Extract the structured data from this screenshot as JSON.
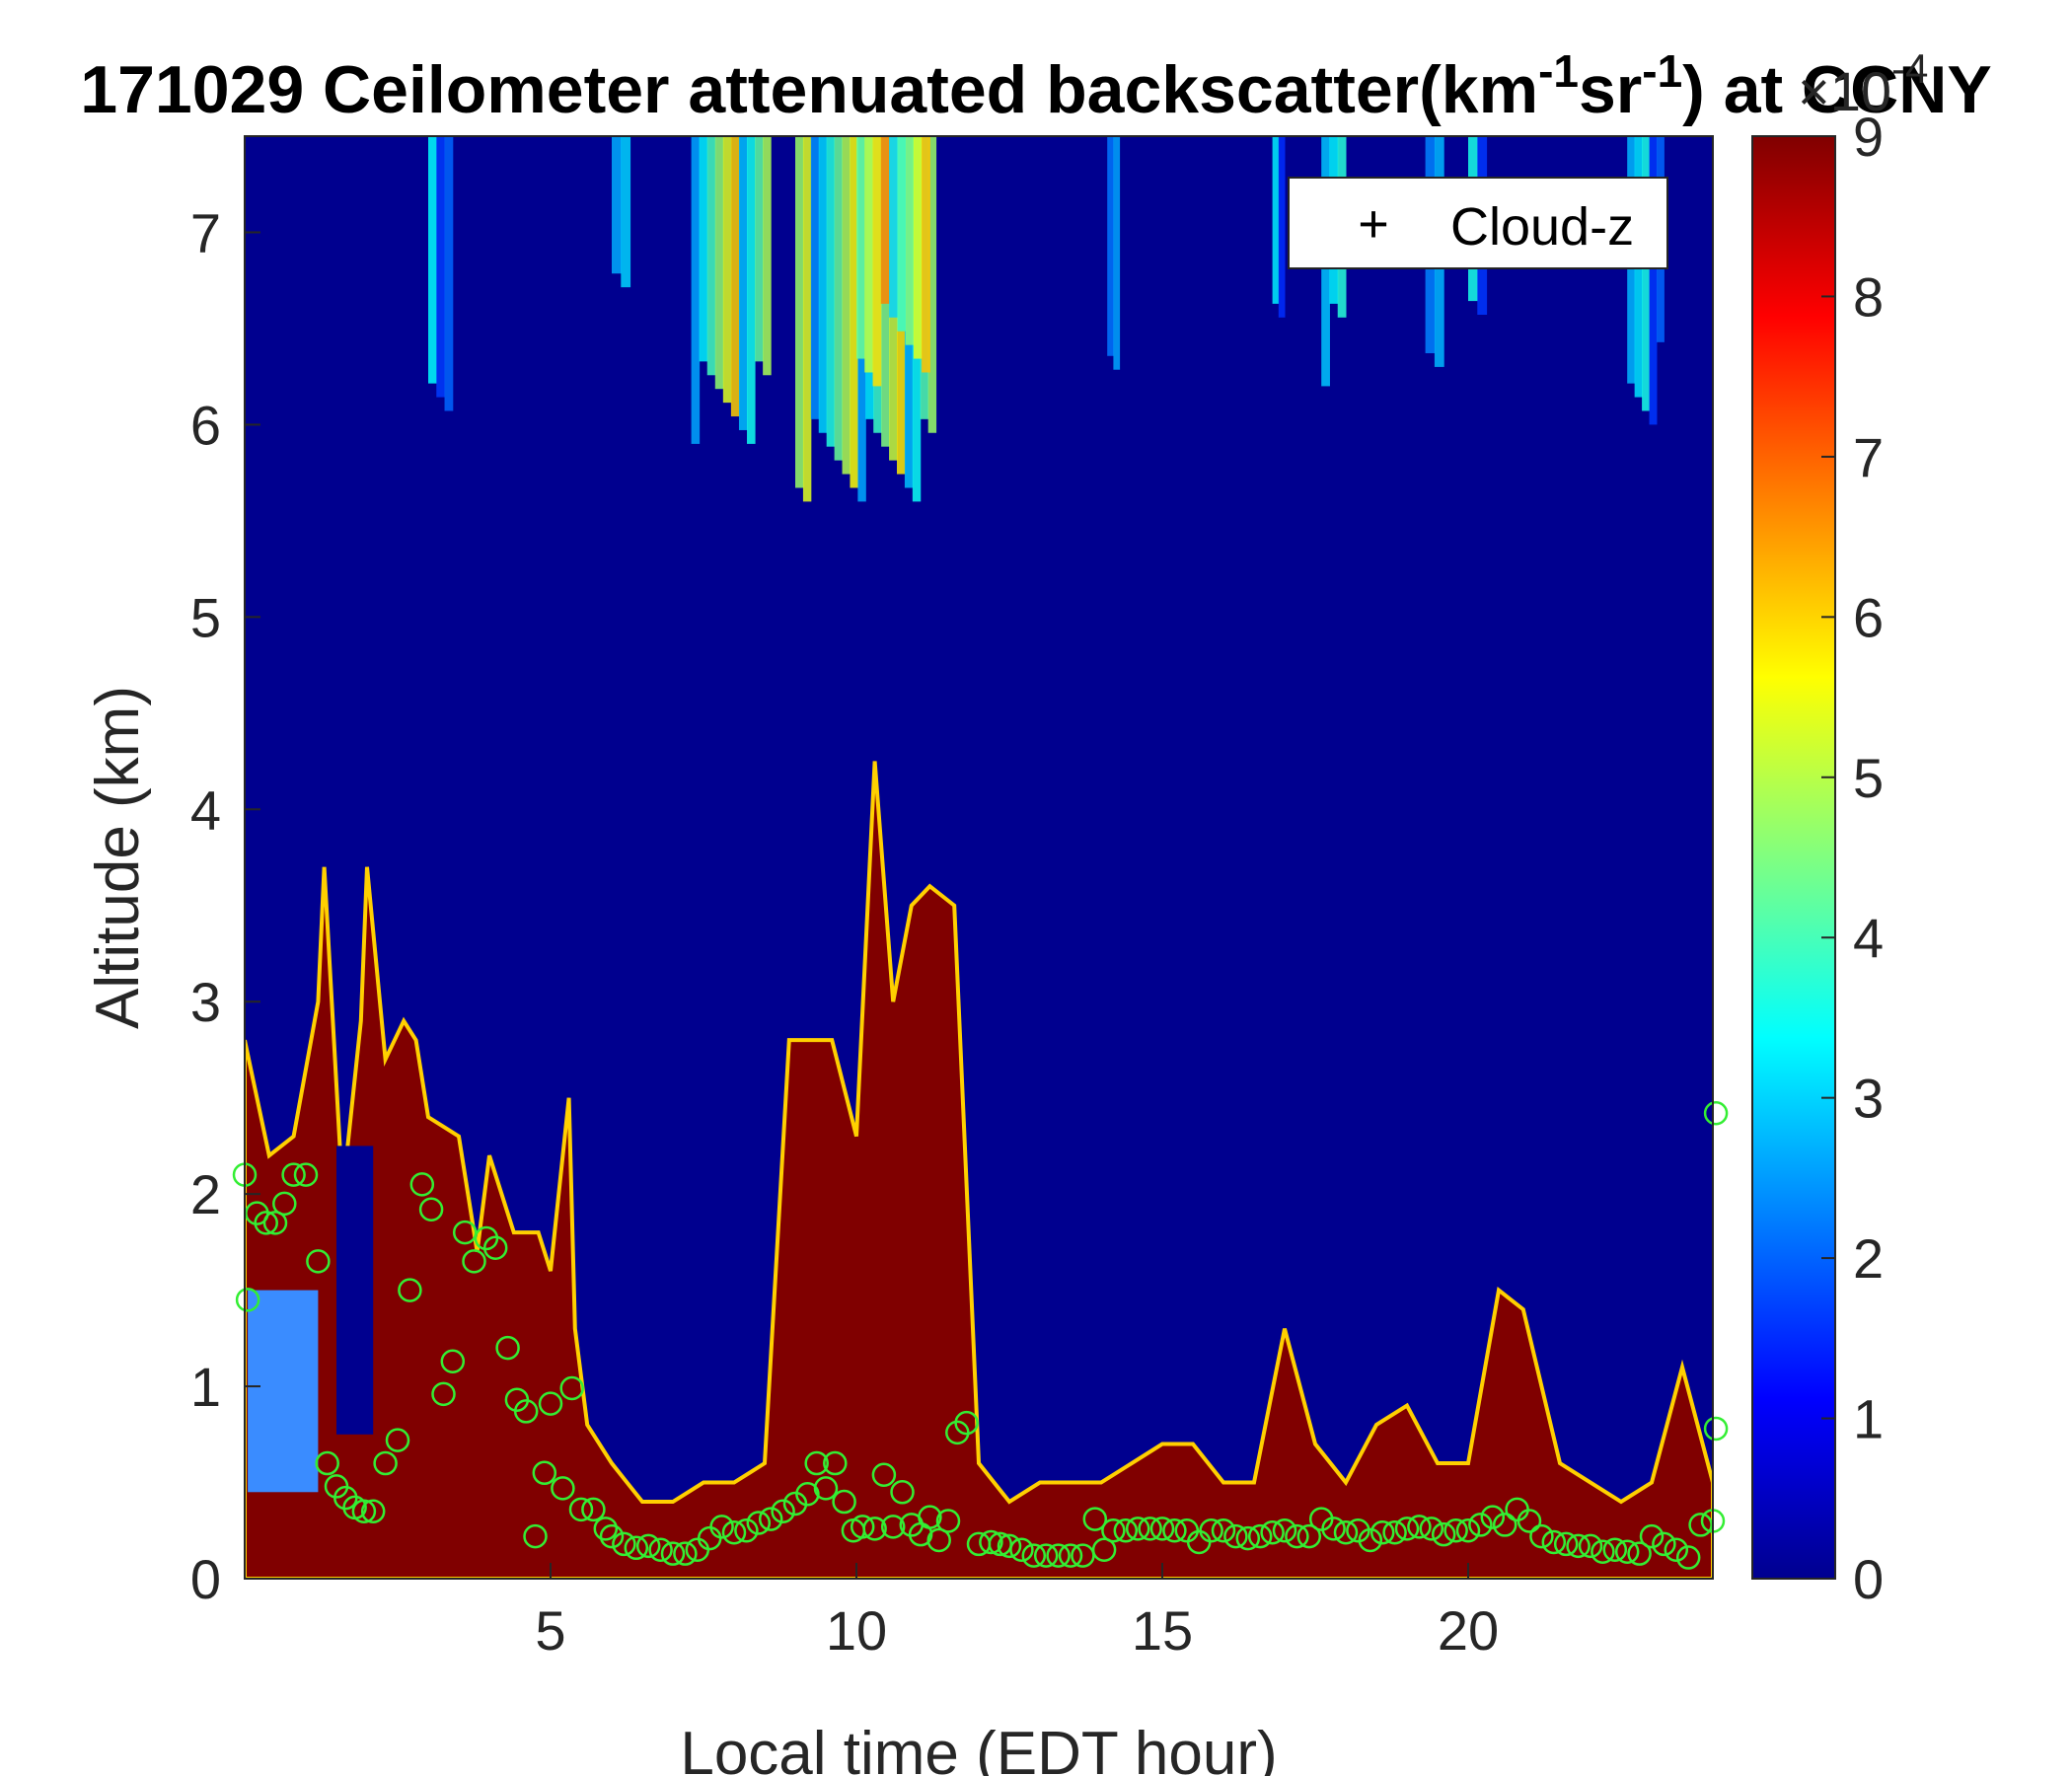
{
  "chart_data": {
    "type": "heatmap",
    "title": {
      "prefix": "171029 Ceilometer attenuated backscatter(km",
      "sup1": "-1",
      "mid": "sr",
      "sup2": "-1",
      "suffix": ") at CCNY"
    },
    "xlabel": "Local time (EDT hour)",
    "ylabel": "Altitude (km)",
    "xlim": [
      0,
      24
    ],
    "ylim": [
      0,
      7.5
    ],
    "xticks": [
      "5",
      "10",
      "15",
      "20"
    ],
    "yticks": [
      "0",
      "1",
      "2",
      "3",
      "4",
      "5",
      "6",
      "7"
    ],
    "colorbar": {
      "colormap": "jet",
      "range": [
        0,
        9
      ],
      "ticks": [
        "0",
        "1",
        "2",
        "3",
        "4",
        "5",
        "6",
        "7",
        "8",
        "9"
      ],
      "exponent_base": "×10",
      "exponent": "-4"
    },
    "legend": {
      "position": "top-right",
      "entries": [
        {
          "marker": "+",
          "label": "Cloud-z"
        }
      ]
    },
    "colors": {
      "low": "#00008F",
      "high": "#800000",
      "marker": "#33EE33"
    },
    "boundary_layer_top_km": [
      [
        0.0,
        2.8
      ],
      [
        0.4,
        2.2
      ],
      [
        0.8,
        2.3
      ],
      [
        1.2,
        3.0
      ],
      [
        1.3,
        3.7
      ],
      [
        1.6,
        2.0
      ],
      [
        1.9,
        2.9
      ],
      [
        2.0,
        3.7
      ],
      [
        2.3,
        2.7
      ],
      [
        2.6,
        2.9
      ],
      [
        2.8,
        2.8
      ],
      [
        3.0,
        2.4
      ],
      [
        3.5,
        2.3
      ],
      [
        3.8,
        1.7
      ],
      [
        4.0,
        2.2
      ],
      [
        4.4,
        1.8
      ],
      [
        4.8,
        1.8
      ],
      [
        5.0,
        1.6
      ],
      [
        5.3,
        2.5
      ],
      [
        5.4,
        1.3
      ],
      [
        5.6,
        0.8
      ],
      [
        6.0,
        0.6
      ],
      [
        6.5,
        0.4
      ],
      [
        7.0,
        0.4
      ],
      [
        7.5,
        0.5
      ],
      [
        8.0,
        0.5
      ],
      [
        8.5,
        0.6
      ],
      [
        8.9,
        2.8
      ],
      [
        9.3,
        2.8
      ],
      [
        9.6,
        2.8
      ],
      [
        10.0,
        2.3
      ],
      [
        10.3,
        4.25
      ],
      [
        10.6,
        3.0
      ],
      [
        10.9,
        3.5
      ],
      [
        11.2,
        3.6
      ],
      [
        11.6,
        3.5
      ],
      [
        12.0,
        0.6
      ],
      [
        12.5,
        0.4
      ],
      [
        13.0,
        0.5
      ],
      [
        13.5,
        0.5
      ],
      [
        14.0,
        0.5
      ],
      [
        14.5,
        0.6
      ],
      [
        15.0,
        0.7
      ],
      [
        15.5,
        0.7
      ],
      [
        16.0,
        0.5
      ],
      [
        16.5,
        0.5
      ],
      [
        17.0,
        1.3
      ],
      [
        17.5,
        0.7
      ],
      [
        18.0,
        0.5
      ],
      [
        18.5,
        0.8
      ],
      [
        19.0,
        0.9
      ],
      [
        19.5,
        0.6
      ],
      [
        20.0,
        0.6
      ],
      [
        20.5,
        1.5
      ],
      [
        20.9,
        1.4
      ],
      [
        21.5,
        0.6
      ],
      [
        22.0,
        0.5
      ],
      [
        22.5,
        0.4
      ],
      [
        23.0,
        0.5
      ],
      [
        23.5,
        1.1
      ],
      [
        24.0,
        0.5
      ]
    ],
    "clouds": [
      {
        "x": [
          7.3,
          8.6
        ],
        "y": [
          5.9,
          7.5
        ],
        "level": 6.5
      },
      {
        "x": [
          9.0,
          11.3
        ],
        "y": [
          5.6,
          7.5
        ],
        "level": 6.0
      },
      {
        "x": [
          10.0,
          11.2
        ],
        "y": [
          6.2,
          7.5
        ],
        "level": 7.5
      },
      {
        "x": [
          3.0,
          3.4
        ],
        "y": [
          6.0,
          7.5
        ],
        "level": 3.5
      },
      {
        "x": [
          6.0,
          6.3
        ],
        "y": [
          6.5,
          7.5
        ],
        "level": 3.5
      },
      {
        "x": [
          14.1,
          14.3
        ],
        "y": [
          6.0,
          7.5
        ],
        "level": 4.0
      },
      {
        "x": [
          16.8,
          17.0
        ],
        "y": [
          6.2,
          7.5
        ],
        "level": 3.5
      },
      {
        "x": [
          17.6,
          18.0
        ],
        "y": [
          6.2,
          7.5
        ],
        "level": 4.0
      },
      {
        "x": [
          19.3,
          19.6
        ],
        "y": [
          6.3,
          7.5
        ],
        "level": 4.5
      },
      {
        "x": [
          20.0,
          20.3
        ],
        "y": [
          6.5,
          7.5
        ],
        "level": 4.0
      },
      {
        "x": [
          22.6,
          23.2
        ],
        "y": [
          6.0,
          7.5
        ],
        "level": 4.0
      }
    ],
    "cloud_z_points": [
      [
        0.0,
        2.1
      ],
      [
        0.05,
        1.45
      ],
      [
        0.2,
        1.9
      ],
      [
        0.35,
        1.85
      ],
      [
        0.5,
        1.85
      ],
      [
        0.65,
        1.95
      ],
      [
        0.8,
        2.1
      ],
      [
        1.0,
        2.1
      ],
      [
        1.2,
        1.65
      ],
      [
        1.35,
        0.6
      ],
      [
        1.5,
        0.48
      ],
      [
        1.65,
        0.42
      ],
      [
        1.8,
        0.37
      ],
      [
        1.95,
        0.35
      ],
      [
        2.1,
        0.35
      ],
      [
        2.3,
        0.6
      ],
      [
        2.5,
        0.72
      ],
      [
        2.7,
        1.5
      ],
      [
        2.9,
        2.05
      ],
      [
        3.05,
        1.92
      ],
      [
        3.25,
        0.96
      ],
      [
        3.4,
        1.13
      ],
      [
        3.6,
        1.8
      ],
      [
        3.75,
        1.65
      ],
      [
        3.95,
        1.77
      ],
      [
        4.1,
        1.72
      ],
      [
        4.3,
        1.2
      ],
      [
        4.45,
        0.93
      ],
      [
        4.6,
        0.87
      ],
      [
        4.75,
        0.22
      ],
      [
        4.9,
        0.55
      ],
      [
        5.0,
        0.91
      ],
      [
        5.2,
        0.47
      ],
      [
        5.35,
        0.99
      ],
      [
        5.5,
        0.36
      ],
      [
        5.7,
        0.36
      ],
      [
        5.9,
        0.26
      ],
      [
        6.0,
        0.22
      ],
      [
        6.2,
        0.18
      ],
      [
        6.4,
        0.16
      ],
      [
        6.6,
        0.17
      ],
      [
        6.8,
        0.15
      ],
      [
        7.0,
        0.13
      ],
      [
        7.2,
        0.13
      ],
      [
        7.4,
        0.15
      ],
      [
        7.6,
        0.21
      ],
      [
        7.8,
        0.27
      ],
      [
        8.0,
        0.24
      ],
      [
        8.2,
        0.25
      ],
      [
        8.4,
        0.29
      ],
      [
        8.6,
        0.31
      ],
      [
        8.8,
        0.35
      ],
      [
        9.0,
        0.39
      ],
      [
        9.2,
        0.44
      ],
      [
        9.35,
        0.6
      ],
      [
        9.5,
        0.47
      ],
      [
        9.65,
        0.6
      ],
      [
        9.8,
        0.4
      ],
      [
        9.95,
        0.25
      ],
      [
        10.1,
        0.27
      ],
      [
        10.3,
        0.26
      ],
      [
        10.45,
        0.54
      ],
      [
        10.6,
        0.27
      ],
      [
        10.75,
        0.45
      ],
      [
        10.9,
        0.28
      ],
      [
        11.05,
        0.23
      ],
      [
        11.2,
        0.32
      ],
      [
        11.35,
        0.2
      ],
      [
        11.5,
        0.3
      ],
      [
        11.65,
        0.76
      ],
      [
        11.8,
        0.81
      ],
      [
        12.0,
        0.18
      ],
      [
        12.2,
        0.19
      ],
      [
        12.35,
        0.18
      ],
      [
        12.5,
        0.17
      ],
      [
        12.7,
        0.15
      ],
      [
        12.9,
        0.12
      ],
      [
        13.1,
        0.12
      ],
      [
        13.3,
        0.12
      ],
      [
        13.5,
        0.12
      ],
      [
        13.7,
        0.12
      ],
      [
        13.9,
        0.31
      ],
      [
        14.05,
        0.15
      ],
      [
        14.2,
        0.25
      ],
      [
        14.4,
        0.25
      ],
      [
        14.6,
        0.26
      ],
      [
        14.8,
        0.26
      ],
      [
        15.0,
        0.26
      ],
      [
        15.2,
        0.25
      ],
      [
        15.4,
        0.25
      ],
      [
        15.6,
        0.19
      ],
      [
        15.8,
        0.25
      ],
      [
        16.0,
        0.25
      ],
      [
        16.2,
        0.22
      ],
      [
        16.4,
        0.21
      ],
      [
        16.6,
        0.22
      ],
      [
        16.8,
        0.24
      ],
      [
        17.0,
        0.25
      ],
      [
        17.2,
        0.22
      ],
      [
        17.4,
        0.22
      ],
      [
        17.6,
        0.31
      ],
      [
        17.8,
        0.26
      ],
      [
        18.0,
        0.24
      ],
      [
        18.2,
        0.25
      ],
      [
        18.4,
        0.2
      ],
      [
        18.6,
        0.24
      ],
      [
        18.8,
        0.24
      ],
      [
        19.0,
        0.26
      ],
      [
        19.2,
        0.27
      ],
      [
        19.4,
        0.26
      ],
      [
        19.6,
        0.23
      ],
      [
        19.8,
        0.25
      ],
      [
        20.0,
        0.25
      ],
      [
        20.2,
        0.28
      ],
      [
        20.4,
        0.32
      ],
      [
        20.6,
        0.28
      ],
      [
        20.8,
        0.36
      ],
      [
        21.0,
        0.3
      ],
      [
        21.2,
        0.22
      ],
      [
        21.4,
        0.19
      ],
      [
        21.6,
        0.18
      ],
      [
        21.8,
        0.17
      ],
      [
        22.0,
        0.17
      ],
      [
        22.2,
        0.14
      ],
      [
        22.4,
        0.15
      ],
      [
        22.6,
        0.14
      ],
      [
        22.8,
        0.13
      ],
      [
        23.0,
        0.22
      ],
      [
        23.2,
        0.18
      ],
      [
        23.4,
        0.15
      ],
      [
        23.6,
        0.11
      ],
      [
        23.8,
        0.28
      ],
      [
        24.0,
        0.3
      ],
      [
        24.05,
        2.42
      ],
      [
        24.05,
        0.78
      ]
    ]
  }
}
